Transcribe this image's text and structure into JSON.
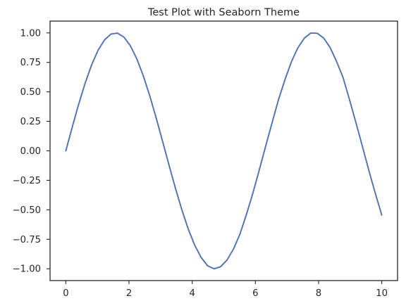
{
  "chart_data": {
    "type": "line",
    "title": "Test Plot with Seaborn Theme",
    "xlabel": "",
    "ylabel": "",
    "xlim": [
      -0.5,
      10.5
    ],
    "ylim": [
      -1.1,
      1.1
    ],
    "grid": false,
    "x_ticks": [
      0,
      2,
      4,
      6,
      8,
      10
    ],
    "x_tick_labels": [
      "0",
      "2",
      "4",
      "6",
      "8",
      "10"
    ],
    "y_ticks": [
      -1.0,
      -0.75,
      -0.5,
      -0.25,
      0.0,
      0.25,
      0.5,
      0.75,
      1.0
    ],
    "y_tick_labels": [
      "−1.00",
      "−0.75",
      "−0.50",
      "−0.25",
      "0.00",
      "0.25",
      "0.50",
      "0.75",
      "1.00"
    ],
    "series": [
      {
        "color": "#4c72b0",
        "x": [
          0.0,
          0.2041,
          0.4082,
          0.6122,
          0.8163,
          1.0204,
          1.2245,
          1.4286,
          1.6327,
          1.8367,
          2.0408,
          2.2449,
          2.449,
          2.6531,
          2.8571,
          3.0612,
          3.2653,
          3.4694,
          3.6735,
          3.8776,
          4.0816,
          4.2857,
          4.4898,
          4.6939,
          4.898,
          5.102,
          5.3061,
          5.5102,
          5.7143,
          5.9184,
          6.1224,
          6.3265,
          6.5306,
          6.7347,
          6.9388,
          7.1429,
          7.3469,
          7.551,
          7.7551,
          7.9592,
          8.1633,
          8.3673,
          8.5714,
          8.7755,
          8.9796,
          9.1837,
          9.3878,
          9.5918,
          9.7959,
          10.0
        ],
        "y": [
          0.0,
          0.2027,
          0.3969,
          0.5747,
          0.7287,
          0.8523,
          0.9406,
          0.9899,
          0.9981,
          0.9648,
          0.8914,
          0.781,
          0.6383,
          0.4694,
          0.2814,
          0.0823,
          -0.1198,
          -0.3171,
          -0.5014,
          -0.6651,
          -0.8014,
          -0.9048,
          -0.9752,
          -0.9998,
          -0.9826,
          -0.9261,
          -0.8329,
          -0.7069,
          -0.5413,
          -0.3606,
          -0.1632,
          0.0408,
          0.2409,
          0.4365,
          0.6055,
          0.7571,
          0.8743,
          0.9563,
          0.9989,
          0.9968,
          0.9556,
          0.8754,
          0.7569,
          0.6213,
          0.4339,
          0.2383,
          0.0381,
          -0.1666,
          -0.3601,
          -0.544
        ]
      }
    ]
  }
}
